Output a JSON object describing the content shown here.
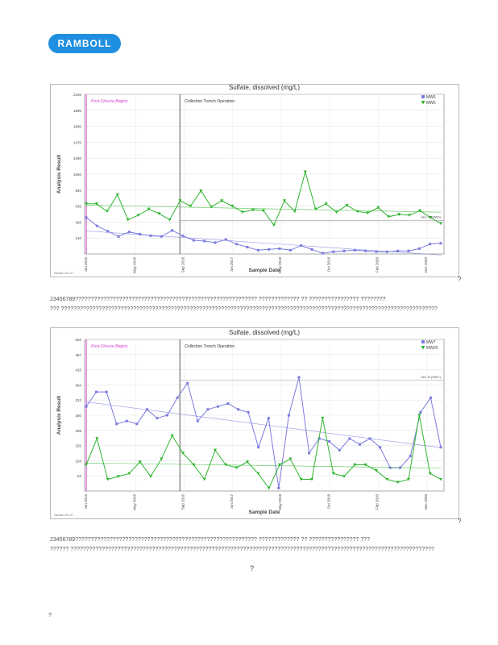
{
  "logo": {
    "text": "RAMBOLL"
  },
  "charts": [
    {
      "title": "Sulfate, dissolved (mg/L)",
      "xlabel": "Sample Date",
      "ylabel": "Analysis Result",
      "region_labels": [
        "Post-Closure Begins",
        "Collection Trench Operation"
      ],
      "yticks": [
        "2100",
        "1890",
        "1680",
        "1470",
        "1260",
        "1050",
        "840",
        "630",
        "420",
        "210"
      ],
      "xticks": [
        "Jun 2015",
        "May 2016",
        "Sep 2016",
        "Jun 2017",
        "May 2018",
        "Oct 2018",
        "Feb 2020",
        "Dec 2020"
      ],
      "legend": [
        {
          "name": "MW6",
          "color": "#7b7be0"
        },
        {
          "name": "MW5",
          "color": "#2fb52f"
        }
      ],
      "limit_label": "Sen Sl (MW6)",
      "footnote": "Sanitas v9.6.37"
    },
    {
      "title": "Sulfate, dissolved (mg/L)",
      "xlabel": "Sample Date",
      "ylabel": "Analysis Result",
      "region_labels": [
        "Post-Closure Begins",
        "Collection Trench Operation"
      ],
      "yticks": [
        "520",
        "467",
        "416",
        "364",
        "312",
        "260",
        "208",
        "156",
        "104",
        "52"
      ],
      "xticks": [
        "Jun 2015",
        "May 2016",
        "Sep 2016",
        "Jun 2017",
        "May 2018",
        "Oct 2018",
        "Feb 2020",
        "Dec 2020"
      ],
      "legend": [
        {
          "name": "MW7",
          "color": "#7b7be0"
        },
        {
          "name": "MW20",
          "color": "#2fb52f"
        }
      ],
      "limit_label": "Sen Sl (MW7)",
      "footnote": "Sanitas v9.6.37"
    }
  ],
  "captions": [
    {
      "line1": "23456789??????????????????????????????????????????????????????????   ?????????????          ??   ????????????????   ????????",
      "line2": "???   ????????????????????????????????????????????????????????????????????????????????????????????????????????????????????????"
    },
    {
      "line1": "23456789??????????????????????????????????????????????????????????   ?????????????          ??   ????????????????   ???",
      "line2": "??????   ????????????????????????????????????????????????????????????????????????????????????????????????????????????????????"
    }
  ],
  "marks": {
    "q1": "?",
    "q2": "?",
    "q3": "?",
    "q4": "?"
  },
  "chart_data": [
    {
      "type": "line",
      "title": "Sulfate, dissolved (mg/L)",
      "xlabel": "Sample Date",
      "ylabel": "Analysis Result",
      "ylim": [
        0,
        2100
      ],
      "series": [
        {
          "name": "MW6",
          "values": [
            480,
            370,
            300,
            230,
            290,
            260,
            240,
            230,
            310,
            240,
            180,
            170,
            150,
            190,
            130,
            90,
            50,
            60,
            70,
            50,
            110,
            60,
            10,
            30,
            40,
            50,
            40,
            30,
            30,
            40,
            40,
            70,
            130,
            140
          ]
        },
        {
          "name": "MW5",
          "values": [
            660,
            660,
            560,
            780,
            450,
            510,
            590,
            530,
            450,
            700,
            630,
            830,
            620,
            700,
            630,
            550,
            580,
            570,
            380,
            700,
            560,
            1080,
            590,
            660,
            550,
            640,
            560,
            540,
            610,
            490,
            520,
            510,
            570,
            480,
            400
          ]
        }
      ]
    },
    {
      "type": "line",
      "title": "Sulfate, dissolved (mg/L)",
      "xlabel": "Sample Date",
      "ylabel": "Analysis Result",
      "ylim": [
        0,
        520
      ],
      "series": [
        {
          "name": "MW7",
          "values": [
            290,
            340,
            340,
            230,
            240,
            230,
            280,
            250,
            260,
            320,
            370,
            240,
            280,
            290,
            300,
            280,
            270,
            150,
            250,
            10,
            260,
            390,
            130,
            180,
            170,
            140,
            180,
            160,
            180,
            150,
            80,
            80,
            120,
            270,
            320,
            150
          ]
        },
        {
          "name": "MW20",
          "values": [
            90,
            180,
            40,
            50,
            60,
            100,
            50,
            110,
            190,
            130,
            90,
            40,
            140,
            90,
            80,
            100,
            60,
            10,
            90,
            110,
            40,
            40,
            250,
            60,
            50,
            90,
            90,
            70,
            40,
            30,
            40,
            260,
            60,
            40
          ]
        }
      ]
    }
  ]
}
